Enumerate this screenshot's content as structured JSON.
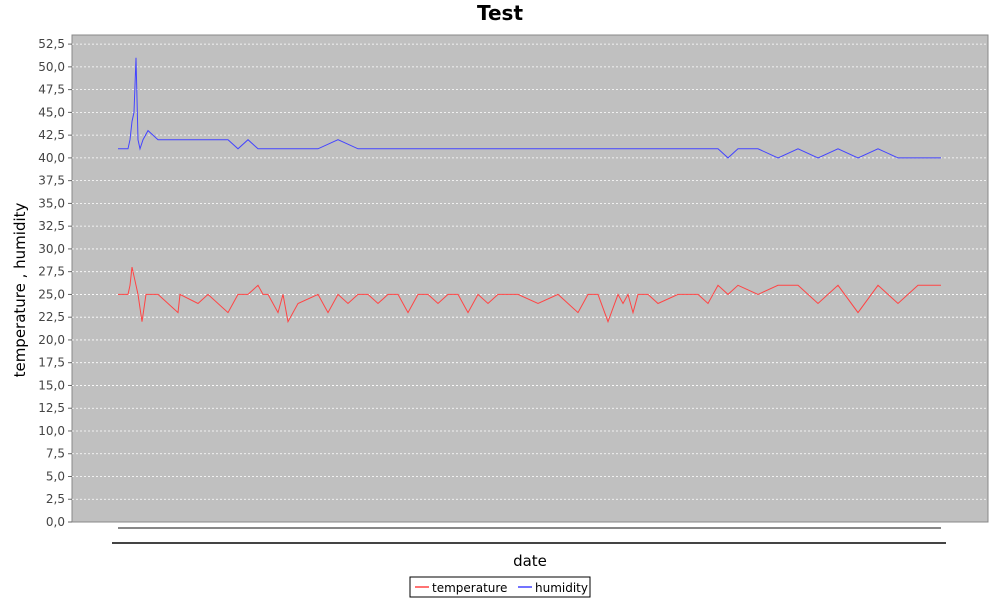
{
  "colors": {
    "plot_background": "#c0c0c0",
    "gridline": "#ffffff",
    "temperature": "#ff4444",
    "humidity": "#4444ff"
  },
  "chart_data": {
    "type": "line",
    "title": "Test",
    "xlabel": "date",
    "ylabel": "temperature , humidity",
    "ylim": [
      0,
      53.5
    ],
    "yticks": [
      "0,0",
      "2,5",
      "5,0",
      "7,5",
      "10,0",
      "12,5",
      "15,0",
      "17,5",
      "20,0",
      "22,5",
      "25,0",
      "27,5",
      "30,0",
      "32,5",
      "35,0",
      "37,5",
      "40,0",
      "42,5",
      "45,0",
      "47,5",
      "50,0",
      "52,5"
    ],
    "x_tick_labels_visible": false,
    "grid": true,
    "legend_position": "bottom-center",
    "series": [
      {
        "name": "temperature",
        "color": "#ff4444",
        "x": [
          0,
          10,
          12,
          14,
          16,
          20,
          24,
          28,
          35,
          40,
          60,
          62,
          80,
          90,
          110,
          120,
          130,
          140,
          145,
          150,
          155,
          160,
          165,
          170,
          180,
          200,
          210,
          220,
          230,
          240,
          250,
          260,
          270,
          280,
          290,
          300,
          310,
          320,
          330,
          340,
          350,
          360,
          370,
          380,
          400,
          420,
          440,
          460,
          470,
          480,
          490,
          500,
          505,
          510,
          515,
          520,
          525,
          530,
          540,
          560,
          580,
          590,
          600,
          610,
          620,
          640,
          660,
          680,
          700,
          720,
          740,
          760,
          780,
          800,
          820,
          823
        ],
        "y": [
          25,
          25,
          26,
          28,
          27,
          25,
          22,
          25,
          25,
          25,
          23,
          25,
          24,
          25,
          23,
          25,
          25,
          26,
          25,
          25,
          24,
          23,
          25,
          22,
          24,
          25,
          23,
          25,
          24,
          25,
          25,
          24,
          25,
          25,
          23,
          25,
          25,
          24,
          25,
          25,
          23,
          25,
          24,
          25,
          25,
          24,
          25,
          23,
          25,
          25,
          22,
          25,
          24,
          25,
          23,
          25,
          25,
          25,
          24,
          25,
          25,
          24,
          26,
          25,
          26,
          25,
          26,
          26,
          24,
          26,
          23,
          26,
          24,
          26,
          26,
          26
        ],
        "legend_label": "temperature"
      },
      {
        "name": "humidity",
        "color": "#4444ff",
        "x": [
          0,
          10,
          12,
          14,
          16,
          18,
          20,
          22,
          25,
          30,
          40,
          60,
          80,
          110,
          120,
          130,
          140,
          150,
          160,
          170,
          180,
          200,
          220,
          240,
          260,
          280,
          300,
          320,
          340,
          360,
          380,
          400,
          420,
          440,
          460,
          480,
          500,
          520,
          540,
          560,
          580,
          600,
          610,
          620,
          640,
          660,
          680,
          700,
          720,
          740,
          760,
          780,
          800,
          820,
          823
        ],
        "y": [
          41,
          41,
          42,
          44,
          45,
          51,
          42,
          41,
          42,
          43,
          42,
          42,
          42,
          42,
          41,
          42,
          41,
          41,
          41,
          41,
          41,
          41,
          42,
          41,
          41,
          41,
          41,
          41,
          41,
          41,
          41,
          41,
          41,
          41,
          41,
          41,
          41,
          41,
          41,
          41,
          41,
          41,
          40,
          41,
          41,
          40,
          41,
          40,
          41,
          40,
          41,
          40,
          40,
          40,
          40
        ],
        "legend_label": "humidity"
      }
    ]
  }
}
